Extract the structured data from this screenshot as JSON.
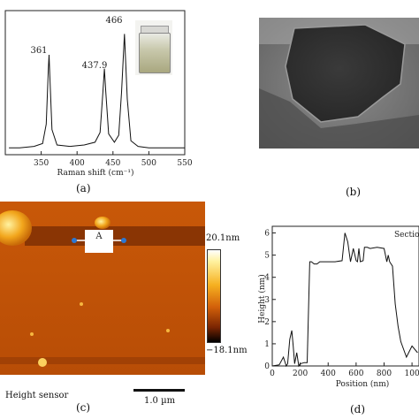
{
  "panel_a": {
    "caption": "(a)",
    "chart_data": {
      "type": "line",
      "xlabel": "Raman shift (cm⁻¹)",
      "ylabel": "",
      "xlim": [
        300,
        550
      ],
      "xticks": [
        "350",
        "400",
        "450",
        "500",
        "550"
      ],
      "peak_labels": [
        "361",
        "437.9",
        "466"
      ],
      "series": [
        {
          "x": [
            305,
            320,
            340,
            352,
            357,
            360,
            361,
            362,
            365,
            372,
            390,
            410,
            425,
            432,
            436,
            438,
            440,
            444,
            452,
            458,
            462,
            466,
            470,
            475,
            485,
            500,
            520,
            550
          ],
          "y": [
            0.05,
            0.05,
            0.06,
            0.08,
            0.22,
            0.62,
            0.72,
            0.58,
            0.18,
            0.07,
            0.06,
            0.07,
            0.09,
            0.16,
            0.45,
            0.62,
            0.45,
            0.15,
            0.09,
            0.14,
            0.45,
            0.87,
            0.4,
            0.1,
            0.06,
            0.05,
            0.05,
            0.05
          ]
        }
      ]
    }
  },
  "panel_b": {
    "caption": "(b)"
  },
  "panel_c": {
    "caption": "(c)",
    "marker_label": "A",
    "colorbar_max": "20.1nm",
    "colorbar_min": "−18.1nm",
    "channel_label": "Height sensor",
    "scale_bar": "1.0 µm"
  },
  "panel_d": {
    "caption": "(d)",
    "chart_data": {
      "type": "line",
      "title": "Section",
      "xlabel": "Position (nm)",
      "ylabel": "Height (nm)",
      "xlim": [
        0,
        1050
      ],
      "ylim": [
        0,
        6.3
      ],
      "xticks": [
        "0",
        "200",
        "400",
        "600",
        "800",
        "100"
      ],
      "yticks": [
        "0",
        "1",
        "2",
        "3",
        "4",
        "5",
        "6"
      ],
      "series": [
        {
          "x": [
            0,
            50,
            80,
            100,
            110,
            125,
            140,
            150,
            160,
            175,
            190,
            200,
            230,
            250,
            268,
            280,
            300,
            320,
            340,
            360,
            400,
            450,
            500,
            520,
            540,
            560,
            580,
            600,
            610,
            620,
            630,
            650,
            660,
            680,
            700,
            750,
            800,
            820,
            830,
            840,
            860,
            880,
            900,
            920,
            960,
            1000,
            1040
          ],
          "y": [
            0,
            0.05,
            0.4,
            0,
            0.1,
            1.2,
            1.6,
            0.9,
            0.1,
            0.6,
            0.0,
            0.1,
            0.15,
            0.15,
            4.7,
            4.7,
            4.6,
            4.6,
            4.7,
            4.7,
            4.7,
            4.7,
            4.75,
            6.0,
            5.6,
            4.7,
            5.3,
            4.75,
            4.7,
            5.3,
            4.7,
            4.75,
            5.35,
            5.35,
            5.3,
            5.35,
            5.3,
            4.7,
            5.0,
            4.7,
            4.5,
            2.8,
            1.8,
            1.1,
            0.4,
            0.9,
            0.6
          ]
        }
      ]
    }
  }
}
